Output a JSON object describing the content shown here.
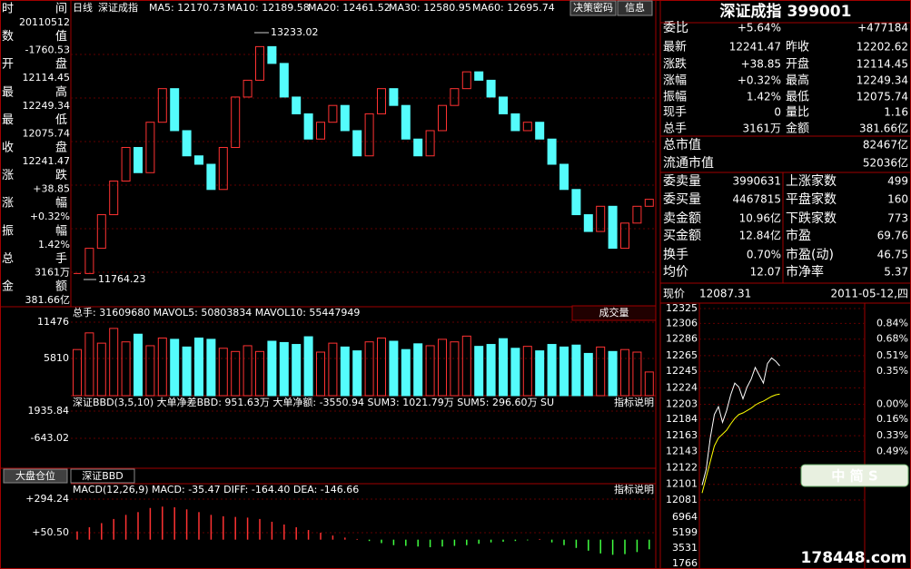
{
  "left": [
    {
      "label": "时间",
      "value": "20110512",
      "color": "#ffffff"
    },
    {
      "label": "数值",
      "value": "-1760.53",
      "color": "#00e000"
    },
    {
      "label": "开盘",
      "value": "12114.45",
      "color": "#00e000"
    },
    {
      "label": "最高",
      "value": "12249.34",
      "color": "#ff4040"
    },
    {
      "label": "最低",
      "value": "12075.74",
      "color": "#00e000"
    },
    {
      "label": "收盘",
      "value": "12241.47",
      "color": "#ff4040"
    },
    {
      "label": "涨跌",
      "value": "+38.85",
      "color": "#ff4040"
    },
    {
      "label": "涨幅",
      "value": "+0.32%",
      "color": "#ff4040"
    },
    {
      "label": "振幅",
      "value": "1.42%",
      "color": "#40e0ff"
    },
    {
      "label": "总手",
      "value": "3161万",
      "color": "#ffffff"
    },
    {
      "label": "金额",
      "value": "381.66亿",
      "color": "#40e0ff"
    }
  ],
  "header": {
    "period": "日线",
    "name": "深证成指",
    "ma": [
      {
        "text": "MA5: 12170.73",
        "color": "#ffffff"
      },
      {
        "text": "MA10: 12189.58",
        "color": "#ffff00"
      },
      {
        "text": "MA20: 12461.52",
        "color": "#ff60ff"
      },
      {
        "text": "MA30: 12580.95",
        "color": "#40ff40"
      },
      {
        "text": "MA60: 12695.74",
        "color": "#40e0ff"
      }
    ],
    "buttons": [
      "决策密码",
      "信息"
    ]
  },
  "kline": {
    "high": 13233.02,
    "high_label": "13233.02",
    "low": 11764.23,
    "low_label": "11764.23",
    "closes": [
      11800,
      11950,
      12150,
      12350,
      12550,
      12400,
      12700,
      12900,
      12650,
      12500,
      12450,
      12300,
      12550,
      12850,
      12950,
      13150,
      13050,
      12850,
      12750,
      12600,
      12700,
      12800,
      12650,
      12500,
      12750,
      12900,
      12800,
      12600,
      12500,
      12650,
      12800,
      12900,
      13000,
      12950,
      12850,
      12750,
      12650,
      12700,
      12600,
      12450,
      12300,
      12150,
      12050,
      12200,
      11950,
      12100,
      12200,
      12241.47
    ]
  },
  "volume": {
    "title": "总手: 31609680  MAVOL5: 50803834  MAVOL10: 55447949",
    "selector": "成交量",
    "yticks": [
      11476,
      5810
    ],
    "values": [
      7200,
      9800,
      8200,
      10500,
      8400,
      9600,
      7800,
      9000,
      8800,
      7600,
      9000,
      8800,
      7400,
      6900,
      7800,
      6900,
      8500,
      8300,
      8000,
      9200,
      6800,
      8200,
      7600,
      7000,
      8400,
      9000,
      8500,
      7200,
      8100,
      7800,
      8800,
      8400,
      9300,
      7700,
      8000,
      8900,
      7400,
      7700,
      7000,
      8000,
      7600,
      7900,
      6600,
      7600,
      6900,
      7200,
      6800,
      3700
    ]
  },
  "bbd": {
    "title": "深证BBD(3,5,10)  大单净差BBD: 951.63万  大单净额: -3550.94  SUM3: 1021.79万  SUM5: 296.60万  SU",
    "help": "指标说明",
    "yticks": [
      {
        "value": 1935.84,
        "label": "1935.84"
      },
      {
        "value": -643.02,
        "label": "-643.02"
      }
    ]
  },
  "tabs": [
    "大盘仓位",
    "深证BBD"
  ],
  "macd": {
    "title": "MACD(12,26,9)  MACD: -35.47  DIFF: -164.40  DEA: -146.66",
    "help": "指标说明",
    "yticks": [
      {
        "value": 294.24,
        "label": "+294.24"
      },
      {
        "value": 50.5,
        "label": "+50.50"
      }
    ],
    "values": [
      60,
      90,
      120,
      150,
      180,
      200,
      230,
      240,
      235,
      220,
      200,
      180,
      170,
      165,
      160,
      150,
      130,
      110,
      90,
      70,
      50,
      30,
      15,
      5,
      -10,
      -25,
      -40,
      -45,
      -50,
      -55,
      -50,
      -45,
      -40,
      -30,
      -20,
      -15,
      -10,
      -5,
      5,
      -20,
      -40,
      -60,
      -80,
      -100,
      -110,
      -105,
      -90,
      -70
    ]
  },
  "quote": {
    "title": "深证成指 399001",
    "rows": [
      [
        {
          "t": "委比",
          "c": "#ffffff"
        },
        {
          "t": "+5.64%",
          "c": "#ff4040"
        },
        {
          "t": "",
          "c": "#ffffff"
        },
        {
          "t": "+477184",
          "c": "#ff4040"
        }
      ],
      [
        {
          "t": "最新",
          "c": "#ffffff"
        },
        {
          "t": "12241.47",
          "c": "#ff4040"
        },
        {
          "t": "昨收",
          "c": "#ffffff"
        },
        {
          "t": "12202.62",
          "c": "#ffffff"
        }
      ],
      [
        {
          "t": "涨跌",
          "c": "#ffffff"
        },
        {
          "t": "+38.85",
          "c": "#ff4040"
        },
        {
          "t": "开盘",
          "c": "#ffffff"
        },
        {
          "t": "12114.45",
          "c": "#00e000"
        }
      ],
      [
        {
          "t": "涨幅",
          "c": "#ffffff"
        },
        {
          "t": "+0.32%",
          "c": "#ff4040"
        },
        {
          "t": "最高",
          "c": "#ffffff"
        },
        {
          "t": "12249.34",
          "c": "#ff4040"
        }
      ],
      [
        {
          "t": "振幅",
          "c": "#ffffff"
        },
        {
          "t": "1.42%",
          "c": "#40e0ff"
        },
        {
          "t": "最低",
          "c": "#ffffff"
        },
        {
          "t": "12075.74",
          "c": "#00e000"
        }
      ],
      [
        {
          "t": "现手",
          "c": "#ffffff"
        },
        {
          "t": "0",
          "c": "#40e0ff"
        },
        {
          "t": "量比",
          "c": "#ffffff"
        },
        {
          "t": "1.16",
          "c": "#ff4040"
        }
      ],
      [
        {
          "t": "总手",
          "c": "#ffffff"
        },
        {
          "t": "3161万",
          "c": "#ffffff"
        },
        {
          "t": "金额",
          "c": "#ffffff"
        },
        {
          "t": "381.66亿",
          "c": "#40e0ff"
        }
      ],
      [
        {
          "t": "总市值",
          "c": "#ffffff"
        },
        {
          "t": "82467亿",
          "c": "#40e0ff"
        }
      ],
      [
        {
          "t": "流通市值",
          "c": "#ffffff"
        },
        {
          "t": "52036亿",
          "c": "#40e0ff"
        }
      ],
      [
        {
          "t": "委卖量",
          "c": "#ffffff"
        },
        {
          "t": "3990631",
          "c": "#40e0ff"
        },
        {
          "t": "上涨家数",
          "c": "#ffffff"
        },
        {
          "t": "499",
          "c": "#ff4040"
        }
      ],
      [
        {
          "t": "委买量",
          "c": "#ffffff"
        },
        {
          "t": "4467815",
          "c": "#ffffff"
        },
        {
          "t": "平盘家数",
          "c": "#ffffff"
        },
        {
          "t": "160",
          "c": "#ffffff"
        }
      ],
      [
        {
          "t": "卖金额",
          "c": "#ffffff"
        },
        {
          "t": "10.96亿",
          "c": "#40e0ff"
        },
        {
          "t": "下跌家数",
          "c": "#ffffff"
        },
        {
          "t": "773",
          "c": "#00e000"
        }
      ],
      [
        {
          "t": "买金额",
          "c": "#ffffff"
        },
        {
          "t": "12.84亿",
          "c": "#40e0ff"
        },
        {
          "t": "市盈",
          "c": "#ffffff"
        },
        {
          "t": "69.76",
          "c": "#ffffff"
        }
      ],
      [
        {
          "t": "换手",
          "c": "#ffffff"
        },
        {
          "t": "0.70%",
          "c": "#40e0ff"
        },
        {
          "t": "市盈(动)",
          "c": "#ffffff"
        },
        {
          "t": "46.75",
          "c": "#ffffff"
        }
      ],
      [
        {
          "t": "均价",
          "c": "#ffffff"
        },
        {
          "t": "12.07",
          "c": "#ffff00"
        },
        {
          "t": "市净率",
          "c": "#ffffff"
        },
        {
          "t": "5.37",
          "c": "#ffffff"
        }
      ]
    ]
  },
  "intraday": {
    "label": "现价",
    "price": "12087.31",
    "date": "2011-05-12,四",
    "yticks": [
      12325,
      12306,
      12286,
      12265,
      12245,
      12224,
      12203,
      12184,
      12163,
      12143,
      12122,
      12101,
      12081
    ],
    "pct": [
      "",
      "0.84%",
      "0.68%",
      "0.51%",
      "0.35%",
      "",
      "0.00%",
      "0.16%",
      "0.33%",
      "0.49%"
    ],
    "vticks": [
      6964,
      5199,
      3531,
      1766
    ],
    "prices": [
      12100,
      12120,
      12160,
      12190,
      12200,
      12180,
      12195,
      12215,
      12230,
      12225,
      12210,
      12225,
      12235,
      12250,
      12240,
      12230,
      12255,
      12262,
      12258,
      12252
    ],
    "avg": [
      12090,
      12110,
      12130,
      12150,
      12160,
      12165,
      12170,
      12178,
      12185,
      12190,
      12192,
      12195,
      12198,
      12202,
      12205,
      12207,
      12210,
      12213,
      12215,
      12216
    ]
  },
  "watermark": "178448.com",
  "logo": "中 简 S"
}
